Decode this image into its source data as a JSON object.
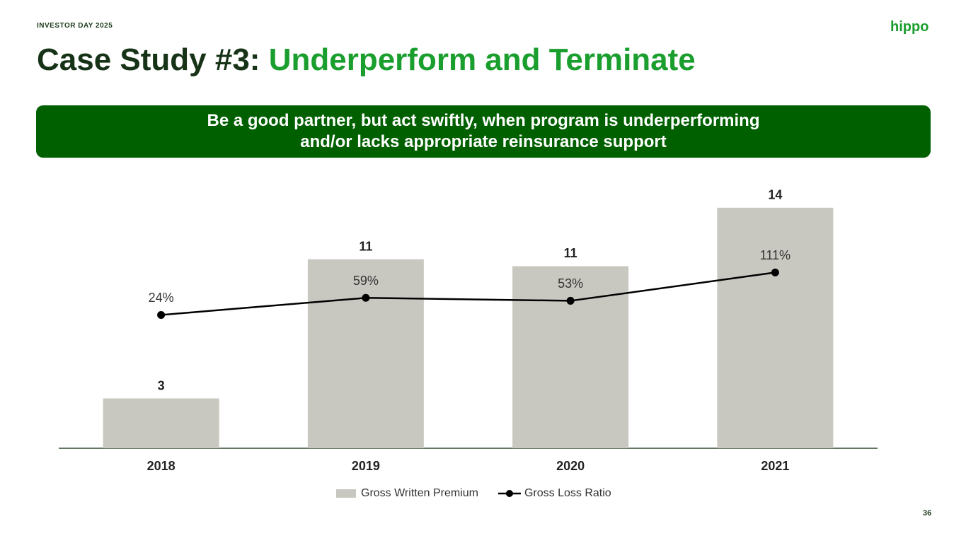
{
  "header": {
    "eyebrow": "INVESTOR DAY 2025",
    "logo": "hippo",
    "title_prefix": "Case Study #3:",
    "title_highlight": "Underperform and Terminate",
    "page_number": "36"
  },
  "banner": {
    "lines": [
      "Be a good partner, but act swiftly, when program is underperforming",
      "and/or lacks appropriate reinsurance support"
    ]
  },
  "chart_data": {
    "type": "bar-line",
    "categories": [
      "2018",
      "2019",
      "2020",
      "2021"
    ],
    "series": [
      {
        "name": "Gross Written Premium",
        "type": "bar",
        "color": "#c9c8c0",
        "values": [
          2.9,
          11,
          10.6,
          14
        ],
        "value_labels": [
          "3",
          "11",
          "11",
          "14"
        ]
      },
      {
        "name": "Gross Loss Ratio",
        "type": "line",
        "color": "#000000",
        "values": [
          24,
          59,
          53,
          111
        ],
        "value_labels": [
          "24%",
          "59%",
          "53%",
          "111%"
        ]
      }
    ],
    "legend": "bottom"
  }
}
